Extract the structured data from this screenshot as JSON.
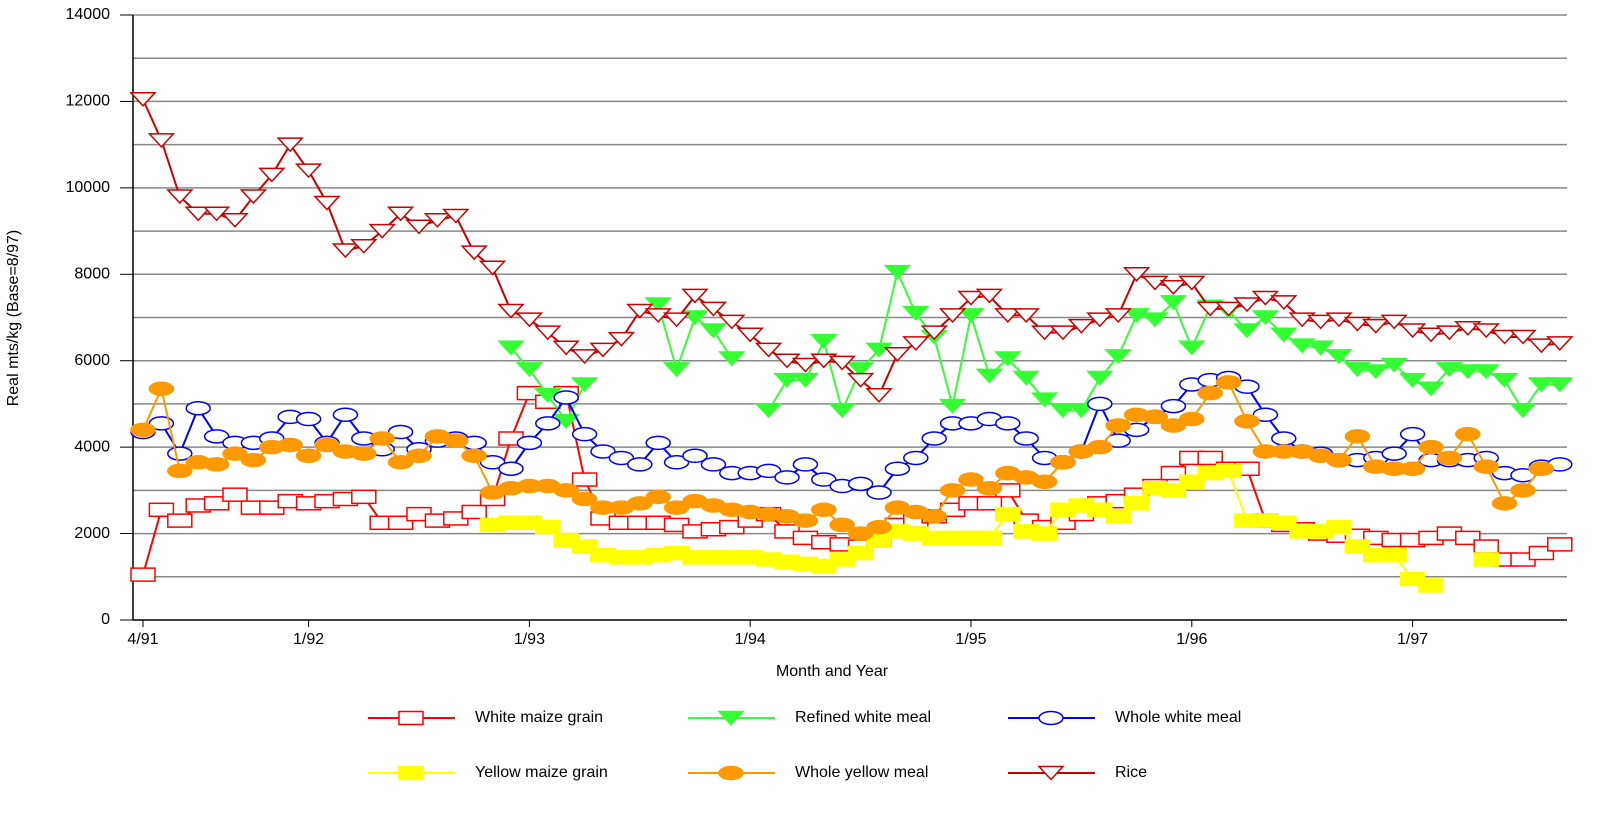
{
  "chart_data": {
    "type": "line",
    "xlabel": "Month and Year",
    "ylabel": "Real mts/kg (Base=8/97)",
    "categories": [
      "4/91",
      null,
      null,
      null,
      null,
      null,
      null,
      null,
      null,
      "1/92",
      null,
      null,
      null,
      null,
      null,
      null,
      null,
      null,
      null,
      null,
      null,
      "1/93",
      null,
      null,
      null,
      null,
      null,
      null,
      null,
      null,
      null,
      null,
      null,
      "1/94",
      null,
      null,
      null,
      null,
      null,
      null,
      null,
      null,
      null,
      null,
      null,
      "1/95",
      null,
      null,
      null,
      null,
      null,
      null,
      null,
      null,
      null,
      null,
      null,
      "1/96",
      null,
      null,
      null,
      null,
      null,
      null,
      null,
      null,
      null,
      null,
      null,
      "1/97",
      null,
      null,
      null,
      null,
      null,
      null,
      null,
      null
    ],
    "ylim": [
      0,
      14000
    ],
    "yticks": [
      0,
      2000,
      4000,
      6000,
      8000,
      10000,
      12000,
      14000
    ],
    "grid": true,
    "legend": "bottom",
    "series": [
      {
        "name": "White maize grain",
        "color": "#ff0000",
        "marker": "square-open",
        "values": [
          1050,
          2550,
          2300,
          2650,
          2700,
          2900,
          2600,
          2600,
          2750,
          2700,
          2750,
          2800,
          2850,
          2250,
          2250,
          2450,
          2300,
          2350,
          2500,
          2800,
          4200,
          5250,
          5050,
          5250,
          3250,
          2350,
          2250,
          2250,
          2250,
          2200,
          2050,
          2100,
          2150,
          2300,
          2450,
          2050,
          1900,
          1800,
          1750,
          1700,
          1850,
          2200,
          2300,
          2400,
          2550,
          2700,
          2700,
          3000,
          2300,
          2150,
          2250,
          2450,
          2700,
          2750,
          2900,
          3100,
          3400,
          3750,
          3750,
          3500,
          3500,
          2300,
          2200,
          2100,
          2000,
          1950,
          1950,
          1900,
          1850,
          1850,
          1900,
          2000,
          1900,
          1700,
          1400,
          1400,
          1550,
          1750
        ]
      },
      {
        "name": "Refined white meal",
        "color": "#33ff33",
        "marker": "triangle-filled",
        "values": [
          null,
          null,
          null,
          null,
          null,
          null,
          null,
          null,
          null,
          null,
          null,
          null,
          null,
          null,
          null,
          null,
          null,
          null,
          null,
          null,
          6300,
          5800,
          5200,
          4600,
          5450,
          null,
          null,
          null,
          7300,
          5800,
          7000,
          6700,
          6050,
          null,
          4850,
          5550,
          5550,
          6450,
          4850,
          5800,
          6250,
          8050,
          7100,
          6550,
          4950,
          7050,
          5650,
          6050,
          5600,
          5100,
          4850,
          4850,
          5600,
          6100,
          7050,
          6950,
          7350,
          6300,
          7250,
          7150,
          6700,
          7000,
          6600,
          6350,
          6300,
          6100,
          5800,
          5750,
          5900,
          5550,
          5350,
          5800,
          5750,
          5750,
          5550,
          4850,
          5450,
          5450
        ]
      },
      {
        "name": "Whole white meal",
        "color": "#0000ff",
        "marker": "circle-open",
        "values": [
          4350,
          4550,
          3850,
          4900,
          4250,
          4100,
          4100,
          4200,
          4700,
          4650,
          4100,
          4750,
          4200,
          3950,
          4350,
          3950,
          4150,
          4200,
          4100,
          3650,
          3500,
          4100,
          4550,
          5150,
          4300,
          3900,
          3750,
          3600,
          4100,
          3650,
          3800,
          3600,
          3400,
          3400,
          3450,
          3300,
          3600,
          3250,
          3100,
          3150,
          2950,
          3500,
          3750,
          4200,
          4550,
          4550,
          4650,
          4550,
          4200,
          3750,
          3650,
          3900,
          5000,
          4150,
          4400,
          4700,
          4950,
          5450,
          5550,
          5600,
          5400,
          4750,
          4200,
          3900,
          3850,
          3700,
          3700,
          3750,
          3850,
          4300,
          3700,
          3700,
          3700,
          3750,
          3400,
          3350,
          3550,
          3600
        ]
      },
      {
        "name": "Yellow maize grain",
        "color": "#ffff00",
        "marker": "square-filled",
        "values": [
          null,
          null,
          null,
          null,
          null,
          null,
          null,
          null,
          null,
          null,
          null,
          null,
          null,
          null,
          null,
          null,
          null,
          null,
          null,
          2200,
          2250,
          2250,
          2150,
          1850,
          1700,
          1500,
          1450,
          1450,
          1500,
          1550,
          1450,
          1450,
          1450,
          1450,
          1400,
          1350,
          1300,
          1250,
          1400,
          1550,
          1850,
          2050,
          2000,
          1900,
          1900,
          1900,
          1900,
          2450,
          2050,
          2000,
          2550,
          2650,
          2550,
          2400,
          2700,
          3050,
          3000,
          3200,
          3400,
          3450,
          2300,
          2300,
          2250,
          2050,
          2050,
          2150,
          1700,
          1500,
          1500,
          950,
          800,
          null,
          null,
          1400,
          null,
          null,
          null,
          null
        ]
      },
      {
        "name": "Whole yellow meal",
        "color": "#ff9900",
        "marker": "circle-filled",
        "values": [
          4400,
          5350,
          3450,
          3650,
          3600,
          3850,
          3700,
          4000,
          4050,
          3800,
          4050,
          3900,
          3850,
          4200,
          3650,
          3800,
          4250,
          4150,
          3800,
          2950,
          3050,
          3100,
          3100,
          3000,
          2800,
          2600,
          2600,
          2700,
          2850,
          2600,
          2750,
          2650,
          2550,
          2500,
          2450,
          2400,
          2300,
          2550,
          2200,
          2000,
          2150,
          2600,
          2500,
          2400,
          3000,
          3250,
          3050,
          3400,
          3300,
          3200,
          3650,
          3900,
          4000,
          4500,
          4750,
          4700,
          4500,
          4650,
          5250,
          5500,
          4600,
          3900,
          3900,
          3900,
          3800,
          3700,
          4250,
          3550,
          3500,
          3500,
          4000,
          3750,
          4300,
          3550,
          2700,
          3000,
          3500,
          null
        ]
      },
      {
        "name": "Rice",
        "color": "#cc0000",
        "marker": "triangle-open",
        "values": [
          12050,
          11100,
          9800,
          9400,
          9400,
          9250,
          9800,
          10300,
          11000,
          10400,
          9650,
          8550,
          8650,
          9000,
          9400,
          9100,
          9250,
          9350,
          8500,
          8150,
          7150,
          6950,
          6650,
          6300,
          6100,
          6250,
          6500,
          7150,
          7050,
          6950,
          7500,
          7200,
          6900,
          6600,
          6250,
          6000,
          5900,
          6000,
          5950,
          5550,
          5200,
          6150,
          6400,
          6650,
          7050,
          7450,
          7500,
          7050,
          7050,
          6650,
          6650,
          6800,
          6950,
          7050,
          8000,
          7800,
          7700,
          7800,
          7200,
          7200,
          7300,
          7450,
          7350,
          6950,
          6900,
          6950,
          6850,
          6800,
          6900,
          6700,
          6600,
          6650,
          6750,
          6700,
          6550,
          6550,
          6350,
          6400
        ]
      }
    ]
  }
}
